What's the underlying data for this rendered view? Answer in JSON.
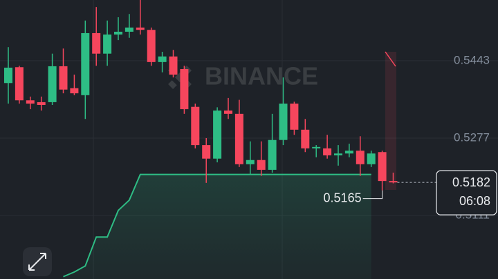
{
  "chart_data": {
    "type": "candlestick",
    "watermark": "BINANCE",
    "open": [
      0.5395,
      0.5429,
      0.5358,
      0.5354,
      0.5354,
      0.5431,
      0.5384,
      0.5369,
      0.5502,
      0.5458,
      0.5499,
      0.5505,
      0.5514,
      0.5509,
      0.544,
      0.5452,
      0.5425,
      0.5344,
      0.5262,
      0.5233,
      0.5336,
      0.5329,
      0.5221,
      0.523,
      0.5209,
      0.5273,
      0.5351,
      0.5295,
      0.5255,
      0.5255,
      0.524,
      0.5244,
      0.525,
      0.5221,
      0.5247,
      0.5185
    ],
    "high": [
      0.5472,
      0.5432,
      0.5366,
      0.5366,
      0.5458,
      0.5469,
      0.5413,
      0.5529,
      0.5558,
      0.5529,
      0.5536,
      0.5543,
      0.5573,
      0.5514,
      0.5462,
      0.5466,
      0.5432,
      0.5351,
      0.5277,
      0.5343,
      0.5363,
      0.5359,
      0.527,
      0.527,
      0.5329,
      0.5407,
      0.5355,
      0.5318,
      0.5262,
      0.5284,
      0.5262,
      0.5265,
      0.5281,
      0.525,
      0.525,
      0.5203
    ],
    "low": [
      0.5351,
      0.5351,
      0.5339,
      0.5336,
      0.5348,
      0.5373,
      0.5369,
      0.5318,
      0.5432,
      0.5432,
      0.5487,
      0.5492,
      0.5499,
      0.5432,
      0.5418,
      0.5407,
      0.5329,
      0.5255,
      0.5181,
      0.5225,
      0.5318,
      0.5215,
      0.52,
      0.5196,
      0.5203,
      0.5262,
      0.5284,
      0.5247,
      0.5236,
      0.5233,
      0.5218,
      0.5236,
      0.5196,
      0.5215,
      0.5165,
      0.518
    ],
    "close": [
      0.5428,
      0.5358,
      0.5351,
      0.5348,
      0.5431,
      0.5381,
      0.5373,
      0.5502,
      0.5458,
      0.5499,
      0.5505,
      0.5514,
      0.5509,
      0.544,
      0.5452,
      0.5413,
      0.5339,
      0.5262,
      0.5233,
      0.5336,
      0.5329,
      0.5221,
      0.523,
      0.5209,
      0.5273,
      0.5351,
      0.5295,
      0.5255,
      0.5258,
      0.524,
      0.5244,
      0.525,
      0.5221,
      0.5244,
      0.5185,
      0.5182
    ],
    "trend": [
      null,
      null,
      null,
      null,
      null,
      0.498,
      0.499,
      0.5003,
      0.5065,
      0.5065,
      0.5122,
      0.5144,
      0.5199,
      0.5199,
      0.5199,
      0.5199,
      0.5199,
      0.5199,
      0.5199,
      0.5199,
      0.5199,
      0.5199,
      0.5199,
      0.5199,
      0.5199,
      0.5199,
      0.5199,
      0.5199,
      0.5199,
      0.5199,
      0.5199,
      0.5199,
      0.5199,
      0.5199,
      null,
      null
    ],
    "up_color": "#2ebd85",
    "down_color": "#f6465d",
    "trend_color": "#2ebd85",
    "low_label": "0.5165",
    "last_price_label": "0.5182",
    "countdown": "06:08",
    "ylim": [
      0.4975,
      0.5573
    ],
    "yticks": [
      0.5443,
      0.5277,
      0.5111
    ],
    "grid": true
  }
}
